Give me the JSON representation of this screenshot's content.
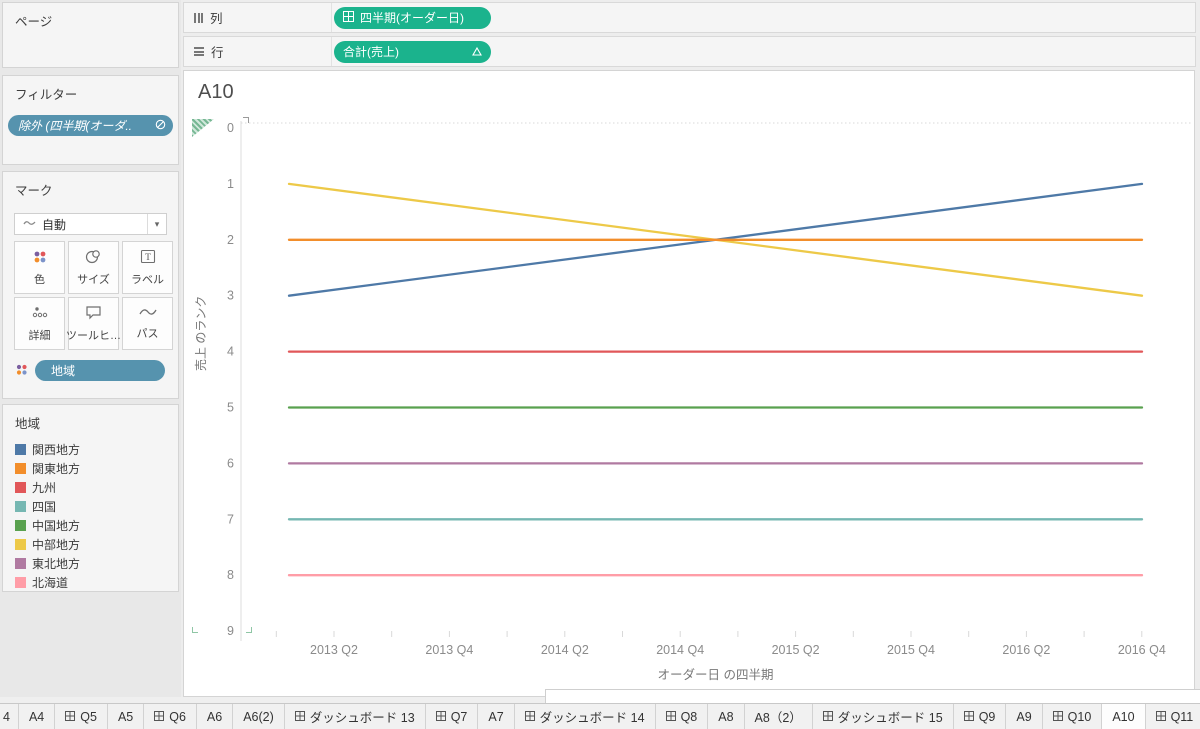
{
  "shelves": {
    "columns_label": "列",
    "rows_label": "行",
    "columns_pill": "四半期(オーダー日)",
    "rows_pill": "合計(売上)",
    "pill_color": "#1bb38d"
  },
  "panels": {
    "pages": {
      "title": "ページ"
    },
    "filters": {
      "title": "フィルター",
      "pill_label": "除外 (四半期(オーダ..",
      "pill_color": "#5693ae"
    },
    "marks": {
      "title": "マーク",
      "mark_type": "自動",
      "buttons": [
        {
          "label": "色",
          "icon": "color-icon"
        },
        {
          "label": "サイズ",
          "icon": "size-icon"
        },
        {
          "label": "ラベル",
          "icon": "label-icon"
        },
        {
          "label": "詳細",
          "icon": "detail-icon"
        },
        {
          "label": "ツールヒ…",
          "icon": "tooltip-icon"
        },
        {
          "label": "パス",
          "icon": "path-icon"
        }
      ],
      "pill_label": "地域",
      "pill_color": "#4f93ae"
    },
    "legend": {
      "title": "地域",
      "items": [
        {
          "label": "関西地方",
          "color": "#4e79a7"
        },
        {
          "label": "関東地方",
          "color": "#f28e2b"
        },
        {
          "label": "九州",
          "color": "#e15759"
        },
        {
          "label": "四国",
          "color": "#76b7b2"
        },
        {
          "label": "中国地方",
          "color": "#59a14f"
        },
        {
          "label": "中部地方",
          "color": "#edc948"
        },
        {
          "label": "東北地方",
          "color": "#b07aa1"
        },
        {
          "label": "北海道",
          "color": "#ff9da7"
        }
      ]
    }
  },
  "chart_data": {
    "type": "line",
    "title": "A10",
    "xlabel": "オーダー日 の四半期",
    "ylabel": "売上 のランク",
    "y_ticks": [
      0,
      1,
      2,
      3,
      4,
      5,
      6,
      7,
      8,
      9
    ],
    "y_axis_reversed": true,
    "ylim": [
      0,
      9
    ],
    "x_tick_labels": [
      "2013 Q2",
      "2013 Q4",
      "2014 Q2",
      "2014 Q4",
      "2015 Q2",
      "2015 Q4",
      "2016 Q2",
      "2016 Q4"
    ],
    "x_range": [
      "2013 Q1",
      "2016 Q4"
    ],
    "grid": false,
    "legend_position": "left-panel",
    "series": [
      {
        "name": "関西地方",
        "color": "#4e79a7",
        "rank_start": 3,
        "rank_end": 1
      },
      {
        "name": "関東地方",
        "color": "#f28e2b",
        "rank_start": 2,
        "rank_end": 2
      },
      {
        "name": "九州",
        "color": "#e15759",
        "rank_start": 4,
        "rank_end": 4
      },
      {
        "name": "四国",
        "color": "#76b7b2",
        "rank_start": 7,
        "rank_end": 7
      },
      {
        "name": "中国地方",
        "color": "#59a14f",
        "rank_start": 5,
        "rank_end": 5
      },
      {
        "name": "中部地方",
        "color": "#edc948",
        "rank_start": 1,
        "rank_end": 3
      },
      {
        "name": "東北地方",
        "color": "#b07aa1",
        "rank_start": 6,
        "rank_end": 6
      },
      {
        "name": "北海道",
        "color": "#ff9da7",
        "rank_start": 8,
        "rank_end": 8
      }
    ]
  },
  "tabs": [
    {
      "label": "4"
    },
    {
      "label": "A4"
    },
    {
      "label": "Q5",
      "icon": true
    },
    {
      "label": "A5"
    },
    {
      "label": "Q6",
      "icon": true
    },
    {
      "label": "A6"
    },
    {
      "label": "A6(2)"
    },
    {
      "label": "ダッシュボード 13",
      "icon": true
    },
    {
      "label": "Q7",
      "icon": true
    },
    {
      "label": "A7"
    },
    {
      "label": "ダッシュボード 14",
      "icon": true
    },
    {
      "label": "Q8",
      "icon": true
    },
    {
      "label": "A8"
    },
    {
      "label": "A8（2）"
    },
    {
      "label": "ダッシュボード 15",
      "icon": true
    },
    {
      "label": "Q9",
      "icon": true
    },
    {
      "label": "A9"
    },
    {
      "label": "Q10",
      "icon": true
    },
    {
      "label": "A10",
      "active": true
    },
    {
      "label": "Q11",
      "icon": true
    }
  ],
  "tab_new_buttons": [
    {
      "icon": "new-worksheet-icon"
    },
    {
      "icon": "new-dashboard-icon"
    },
    {
      "icon": "new-story-icon"
    }
  ]
}
